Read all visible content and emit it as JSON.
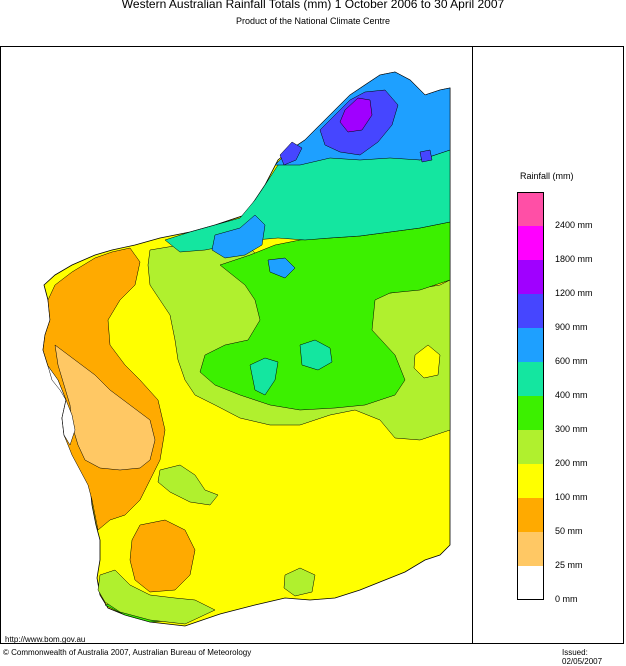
{
  "header": {
    "title": "Western Australian Rainfall Totals (mm) 1 October 2006 to 30 April 2007",
    "subtitle": "Product of the National Climate Centre"
  },
  "legend": {
    "title": "Rainfall (mm)",
    "bins": [
      {
        "color": "#ff4fa6",
        "label": "2400 mm"
      },
      {
        "color": "#ff00ff",
        "label": "1800 mm"
      },
      {
        "color": "#a000ff",
        "label": "1200 mm"
      },
      {
        "color": "#4646ff",
        "label": "900 mm"
      },
      {
        "color": "#1ea0ff",
        "label": "600 mm"
      },
      {
        "color": "#14e6a0",
        "label": "400 mm"
      },
      {
        "color": "#3cf000",
        "label": "300 mm"
      },
      {
        "color": "#b0f02e",
        "label": "200 mm"
      },
      {
        "color": "#ffff00",
        "label": "100 mm"
      },
      {
        "color": "#ffaa00",
        "label": "50 mm"
      },
      {
        "color": "#ffc864",
        "label": "25 mm"
      },
      {
        "color": "#ffffff",
        "label": "0 mm"
      }
    ]
  },
  "footer": {
    "url": "http://www.bom.gov.au",
    "copyright": "© Commonwealth of Australia 2007, Australian Bureau of Meteorology",
    "issued": "Issued: 02/05/2007"
  }
}
